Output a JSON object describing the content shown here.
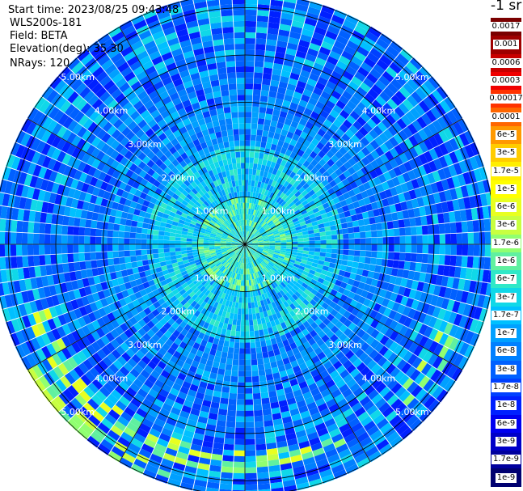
{
  "header": {
    "start_time": "Start time: 2023/08/25 09:43:48",
    "instrument": "WLS200s-181",
    "field": "Field: BETA",
    "elevation": "Elevation(deg): 35.30",
    "nrays": "NRays: 120"
  },
  "colorbar": {
    "unit": "-1 sr",
    "labels": [
      "0.0017",
      "0.001",
      "0.0006",
      "0.0003",
      "0.00017",
      "0.0001",
      "6e-5",
      "3e-5",
      "1.7e-5",
      "1e-5",
      "6e-6",
      "3e-6",
      "1.7e-6",
      "1e-6",
      "6e-7",
      "3e-7",
      "1.7e-7",
      "1e-7",
      "6e-8",
      "3e-8",
      "1.7e-8",
      "1e-8",
      "6e-9",
      "3e-9",
      "1.7e-9",
      "1e-9"
    ],
    "colors": [
      "#7a0000",
      "#9e0000",
      "#c80000",
      "#f00000",
      "#ff3300",
      "#ff6600",
      "#ff9900",
      "#ffcc00",
      "#ffee00",
      "#ffff00",
      "#e8ff20",
      "#c8ff40",
      "#90ff70",
      "#60f0a0",
      "#30e8c8",
      "#10d8e8",
      "#00c0ff",
      "#00a0ff",
      "#0080ff",
      "#0060ff",
      "#0040ff",
      "#0020ff",
      "#0000f0",
      "#0000c8",
      "#00009e",
      "#000070"
    ]
  },
  "chart_data": {
    "type": "ppi",
    "field": "BETA",
    "elevation_deg": 35.3,
    "n_rays": 120,
    "range_rings_km": [
      1,
      2,
      3,
      4,
      5
    ],
    "ring_labels": [
      "1.00km",
      "2.00km",
      "3.00km",
      "4.00km",
      "5.00km"
    ],
    "max_range_km": 5.3,
    "spoke_angles_deg": [
      0,
      30,
      60,
      90,
      120,
      150,
      180,
      210,
      240,
      270,
      300,
      330
    ],
    "dominant_levels": {
      "inner_1km": "1.7e-7 to 1e-6",
      "1_to_3km": "1e-8 to 1e-7",
      "3_to_5km": "1e-9 to 3e-8",
      "south_edge_arc": "1.7e-7 to 1e-6"
    }
  }
}
